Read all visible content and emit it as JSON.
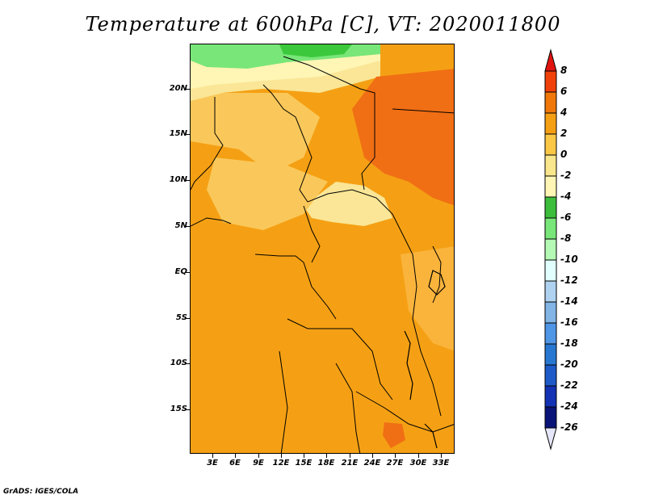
{
  "title": "Temperature at 600hPa [C], VT: 2020011800",
  "credit": "GrADS: IGES/COLA",
  "lat_labels": [
    "20N",
    "15N",
    "10N",
    "5N",
    "EQ",
    "5S",
    "10S",
    "15S"
  ],
  "lon_labels": [
    "3E",
    "6E",
    "9E",
    "12E",
    "15E",
    "18E",
    "21E",
    "24E",
    "27E",
    "30E",
    "33E"
  ],
  "colorbar": {
    "labels": [
      "8",
      "6",
      "4",
      "2",
      "0",
      "-2",
      "-4",
      "-6",
      "-8",
      "-10",
      "-12",
      "-14",
      "-16",
      "-18",
      "-20",
      "-22",
      "-24",
      "-26"
    ],
    "colors": [
      "#e0140f",
      "#f0410a",
      "#f0780a",
      "#f5a014",
      "#fac846",
      "#fae68c",
      "#fff5b4",
      "#3cbe3c",
      "#78e678",
      "#b4fab4",
      "#e1ffff",
      "#afd2f0",
      "#82b4e6",
      "#5096e6",
      "#2878d2",
      "#1e5ac8",
      "#1432b4",
      "#0a1478",
      "#e6e6fa"
    ]
  },
  "map": {
    "legend_colors": {
      "warm_6": "#f06e14",
      "warm_4": "#f5a014",
      "warm_2": "#fab43c",
      "mild_0": "#fac85a",
      "cool_m2": "#fae696",
      "cool_m4": "#fff5b4",
      "green_m6": "#3cc83c",
      "green_m8": "#78e678",
      "border": "#000000"
    }
  }
}
